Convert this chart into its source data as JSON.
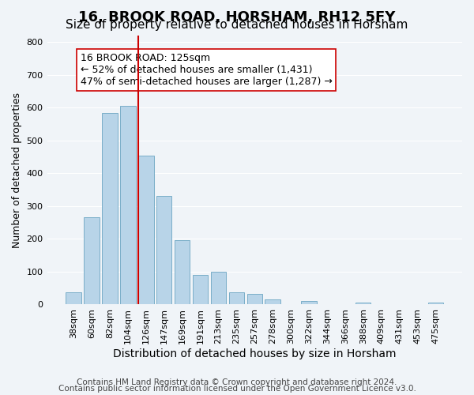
{
  "title": "16, BROOK ROAD, HORSHAM, RH12 5FY",
  "subtitle": "Size of property relative to detached houses in Horsham",
  "xlabel": "Distribution of detached houses by size in Horsham",
  "ylabel": "Number of detached properties",
  "categories": [
    "38sqm",
    "60sqm",
    "82sqm",
    "104sqm",
    "126sqm",
    "147sqm",
    "169sqm",
    "191sqm",
    "213sqm",
    "235sqm",
    "257sqm",
    "278sqm",
    "300sqm",
    "322sqm",
    "344sqm",
    "366sqm",
    "388sqm",
    "409sqm",
    "431sqm",
    "453sqm",
    "475sqm"
  ],
  "values": [
    38,
    265,
    585,
    605,
    455,
    330,
    195,
    90,
    100,
    38,
    32,
    15,
    0,
    10,
    0,
    0,
    5,
    0,
    0,
    0,
    5
  ],
  "bar_color": "#b8d4e8",
  "bar_edge_color": "#7aaec8",
  "vline_x": 3.575,
  "vline_color": "#cc0000",
  "annotation_line1": "16 BROOK ROAD: 125sqm",
  "annotation_line2": "← 52% of detached houses are smaller (1,431)",
  "annotation_line3": "47% of semi-detached houses are larger (1,287) →",
  "annotation_box_color": "#ffffff",
  "annotation_box_edge_color": "#cc0000",
  "ylim": [
    0,
    820
  ],
  "yticks": [
    0,
    100,
    200,
    300,
    400,
    500,
    600,
    700,
    800
  ],
  "footer_line1": "Contains HM Land Registry data © Crown copyright and database right 2024.",
  "footer_line2": "Contains public sector information licensed under the Open Government Licence v3.0.",
  "title_fontsize": 13,
  "subtitle_fontsize": 11,
  "xlabel_fontsize": 10,
  "ylabel_fontsize": 9,
  "tick_fontsize": 8,
  "annotation_fontsize": 9,
  "footer_fontsize": 7.5,
  "bg_color": "#f0f4f8"
}
